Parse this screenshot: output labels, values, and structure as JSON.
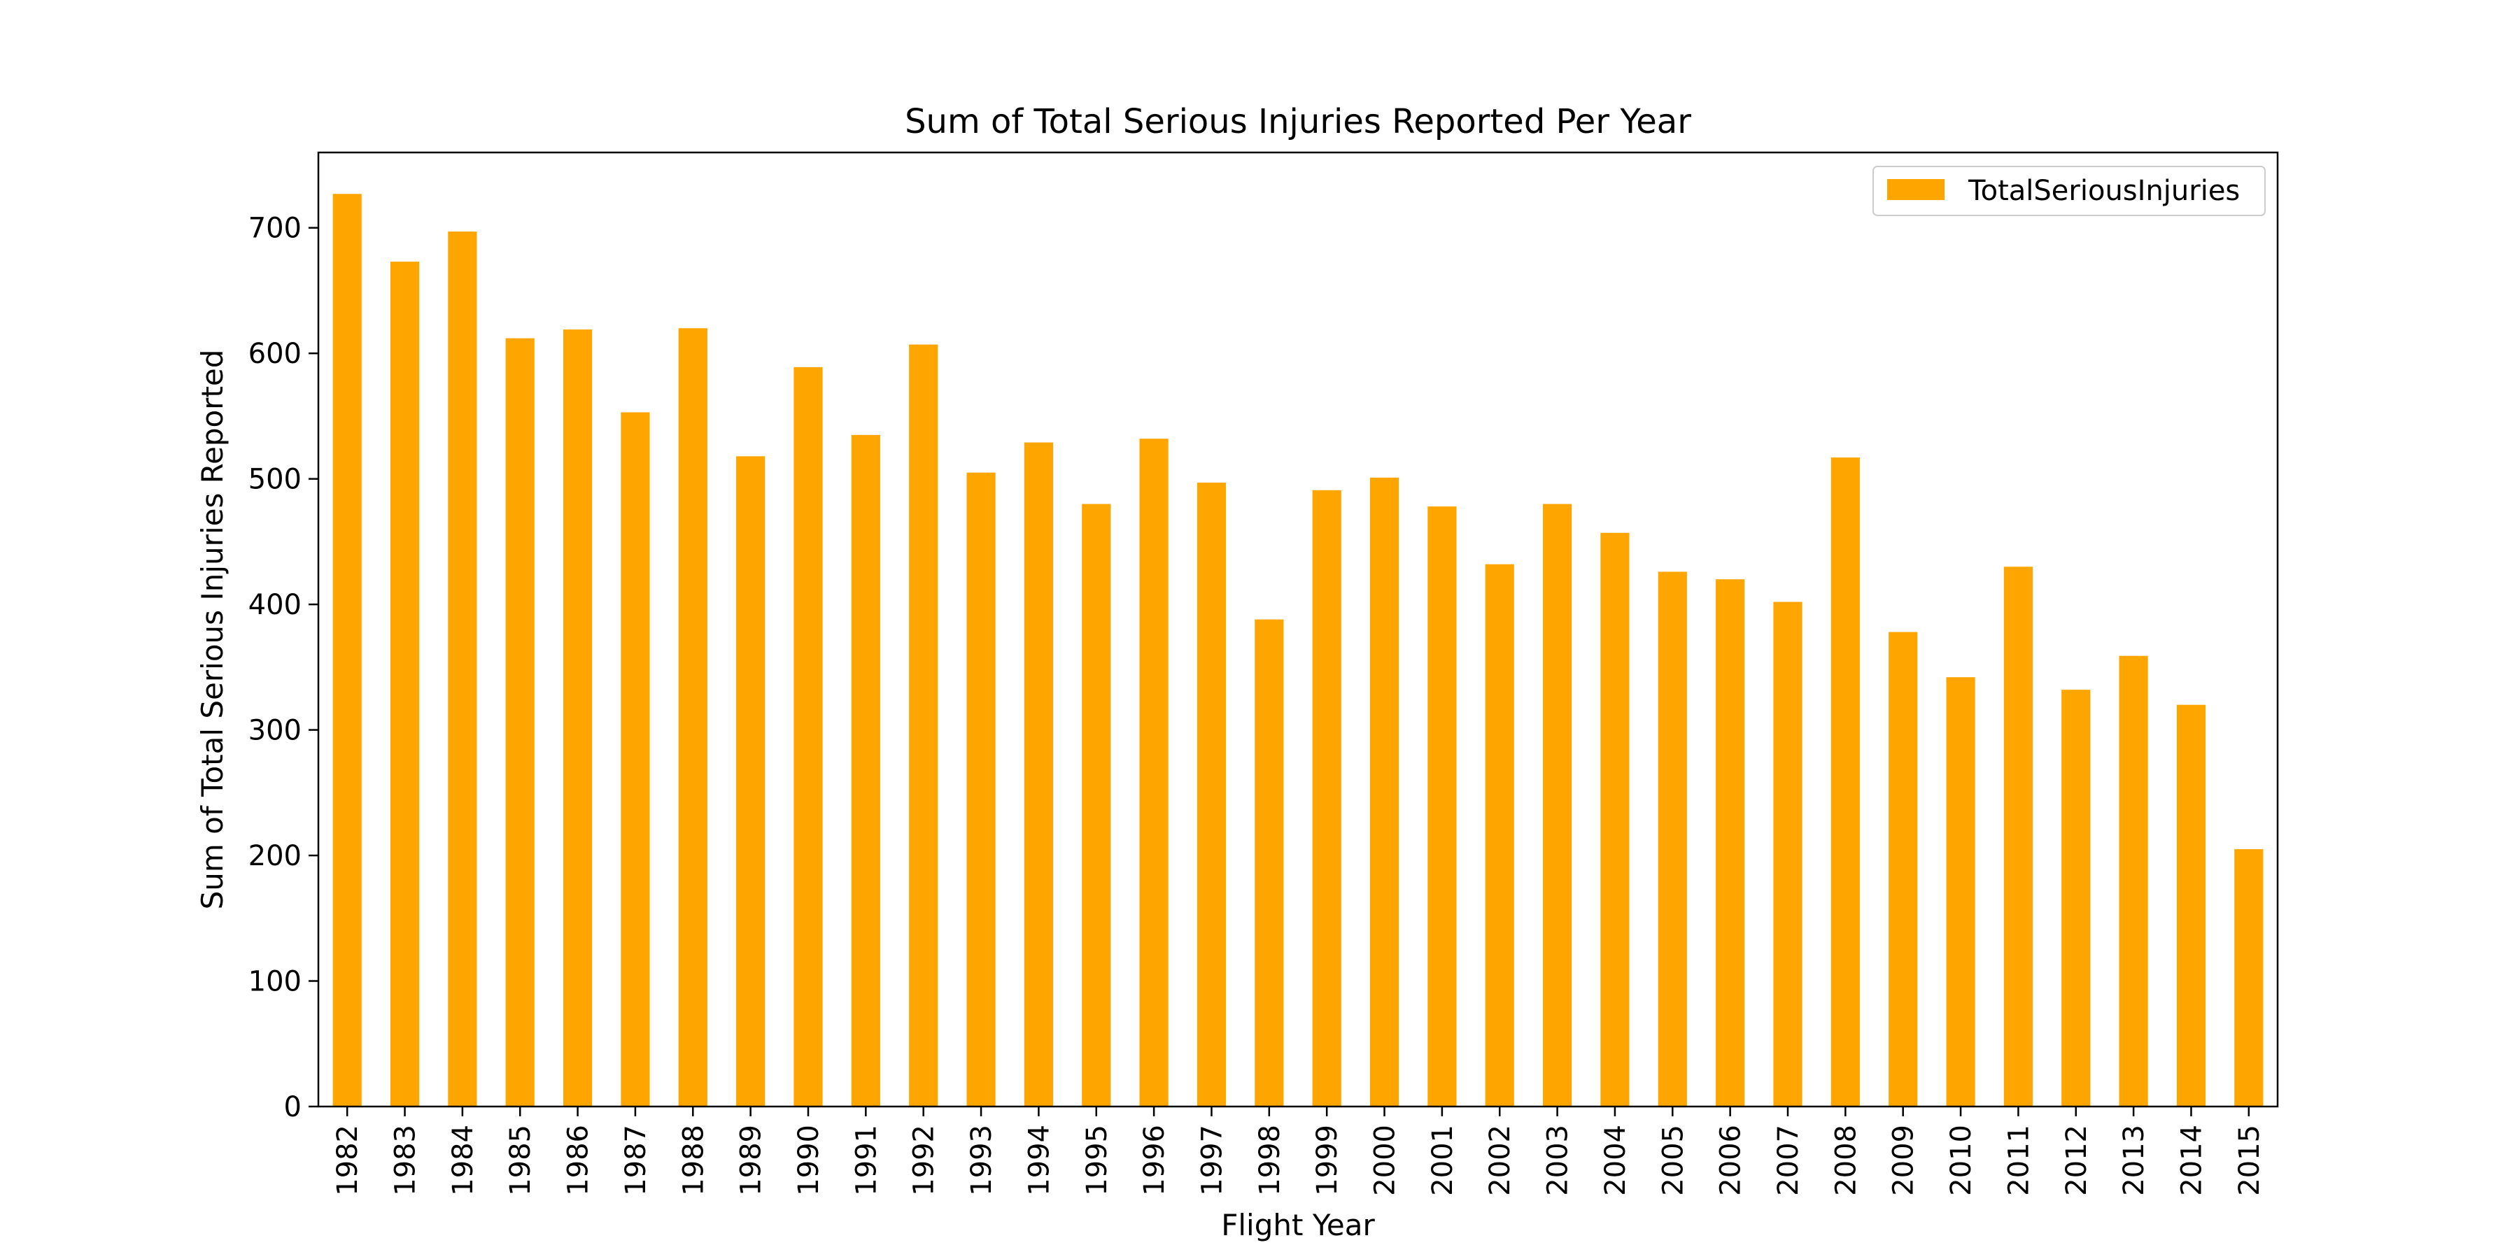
{
  "chart_data": {
    "type": "bar",
    "title": "Sum of Total Serious Injuries Reported Per Year",
    "xlabel": "Flight Year",
    "ylabel": "Sum of Total Serious Injuries Reported",
    "categories": [
      "1982",
      "1983",
      "1984",
      "1985",
      "1986",
      "1987",
      "1988",
      "1989",
      "1990",
      "1991",
      "1992",
      "1993",
      "1994",
      "1995",
      "1996",
      "1997",
      "1998",
      "1999",
      "2000",
      "2001",
      "2002",
      "2003",
      "2004",
      "2005",
      "2006",
      "2007",
      "2008",
      "2009",
      "2010",
      "2011",
      "2012",
      "2013",
      "2014",
      "2015"
    ],
    "series": [
      {
        "name": "TotalSeriousInjuries",
        "color": "#ffa500",
        "values": [
          727,
          673,
          697,
          612,
          619,
          553,
          620,
          518,
          589,
          535,
          607,
          505,
          529,
          480,
          532,
          497,
          388,
          491,
          501,
          478,
          432,
          480,
          457,
          426,
          420,
          402,
          517,
          378,
          342,
          430,
          332,
          359,
          320,
          205
        ]
      }
    ],
    "ylim": [
      0,
      760
    ],
    "yticks": [
      0,
      100,
      200,
      300,
      400,
      500,
      600,
      700
    ],
    "grid": false,
    "legend_position": "top-right"
  }
}
